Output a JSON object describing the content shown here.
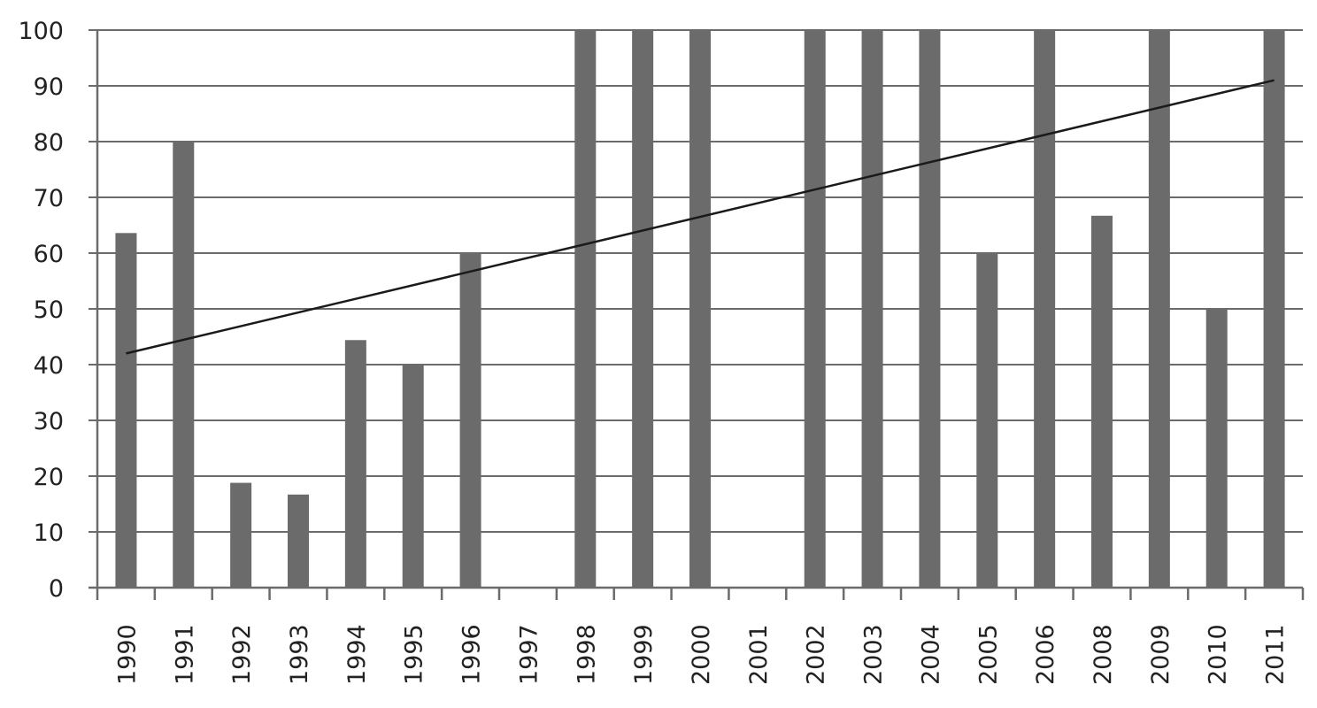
{
  "chart_data": {
    "type": "bar",
    "categories": [
      "1990",
      "1991",
      "1992",
      "1993",
      "1994",
      "1995",
      "1996",
      "1997",
      "1998",
      "1999",
      "2000",
      "2001",
      "2002",
      "2003",
      "2004",
      "2005",
      "2006",
      "2008",
      "2009",
      "2010",
      "2011"
    ],
    "values": [
      63.6,
      80,
      18.8,
      16.7,
      44.4,
      40,
      60,
      0,
      100,
      100,
      100,
      0,
      100,
      100,
      100,
      60,
      100,
      66.7,
      100,
      50,
      100
    ],
    "trendline": {
      "type": "linear",
      "start": 42,
      "end": 91
    },
    "ylim": [
      0,
      100
    ],
    "y_ticks": [
      "0",
      "10",
      "20",
      "30",
      "40",
      "50",
      "60",
      "70",
      "80",
      "90",
      "100"
    ],
    "title": "",
    "xlabel": "",
    "ylabel": "",
    "grid": true,
    "legend": "none",
    "colors": {
      "bar": "#6b6b6b",
      "grid": "#6b6b6b",
      "trend": "#1a1a1a",
      "text": "#222222"
    }
  }
}
